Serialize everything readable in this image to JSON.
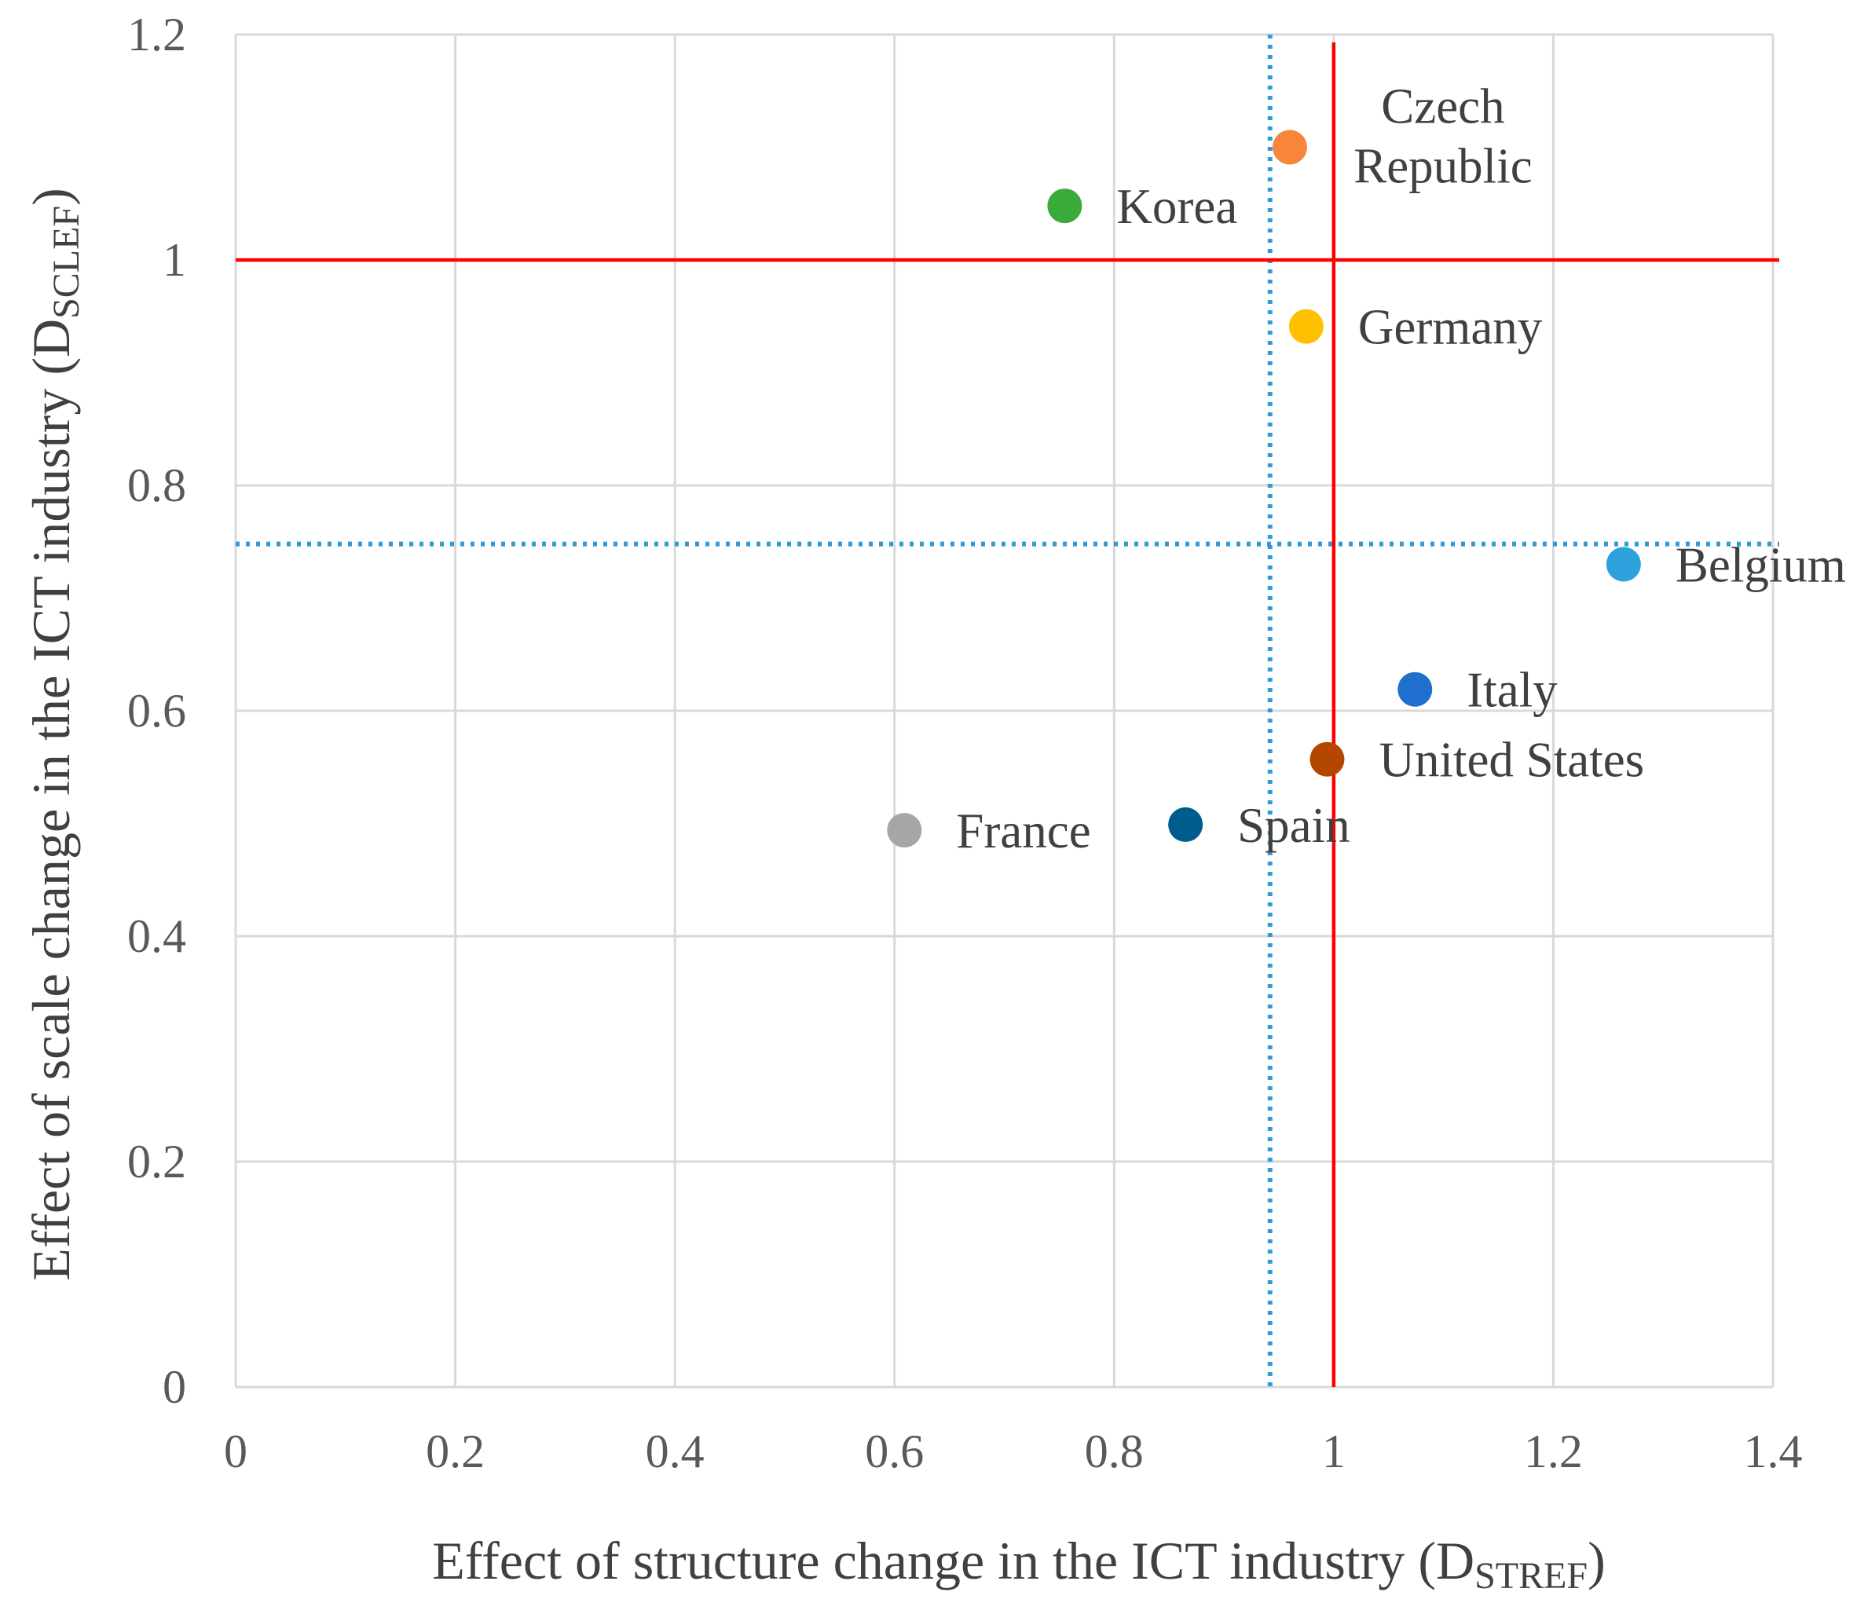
{
  "chart_data": {
    "type": "scatter",
    "xlabel_parts": [
      "Effect of structure change in the ICT industry (D",
      "STREF",
      ")"
    ],
    "ylabel_parts": [
      "Effect of scale change in the ICT industry (D",
      "SCLEF",
      ")"
    ],
    "points": [
      {
        "label": [
          "Korea"
        ],
        "color": "#3aaa3a",
        "x": 0.755,
        "y": 1.048
      },
      {
        "label": [
          "Czech",
          "Republic"
        ],
        "color": "#f7853a",
        "x": 0.96,
        "y": 1.1
      },
      {
        "label": [
          "Germany"
        ],
        "color": "#ffc000",
        "x": 0.975,
        "y": 0.941
      },
      {
        "label": [
          "Belgium"
        ],
        "color": "#2ea0dc",
        "x": 1.264,
        "y": 0.73
      },
      {
        "label": [
          "Italy"
        ],
        "color": "#1f6fcf",
        "x": 1.074,
        "y": 0.619
      },
      {
        "label": [
          "United States"
        ],
        "color": "#b34700",
        "x": 0.994,
        "y": 0.557
      },
      {
        "label": [
          "Spain"
        ],
        "color": "#005b8f",
        "x": 0.865,
        "y": 0.499
      },
      {
        "label": [
          "France"
        ],
        "color": "#a6a6a6",
        "x": 0.609,
        "y": 0.494
      }
    ],
    "reference_lines": [
      {
        "axis": "x",
        "value": 0.942,
        "color": "#2e9bdc",
        "style": "dotted"
      },
      {
        "axis": "y",
        "value": 0.748,
        "color": "#2e9bdc",
        "style": "dotted"
      },
      {
        "axis": "x",
        "value": 1,
        "color": "#ff0000",
        "style": "solid"
      },
      {
        "axis": "y",
        "value": 1,
        "color": "#ff0000",
        "style": "solid"
      }
    ],
    "xlim": [
      0,
      1.4
    ],
    "ylim": [
      0,
      1.2
    ],
    "xticks": [
      0,
      0.2,
      0.4,
      0.6,
      0.8,
      1,
      1.2,
      1.4
    ],
    "yticks": [
      0,
      0.2,
      0.4,
      0.6,
      0.8,
      1,
      1.2
    ],
    "grid": true
  }
}
